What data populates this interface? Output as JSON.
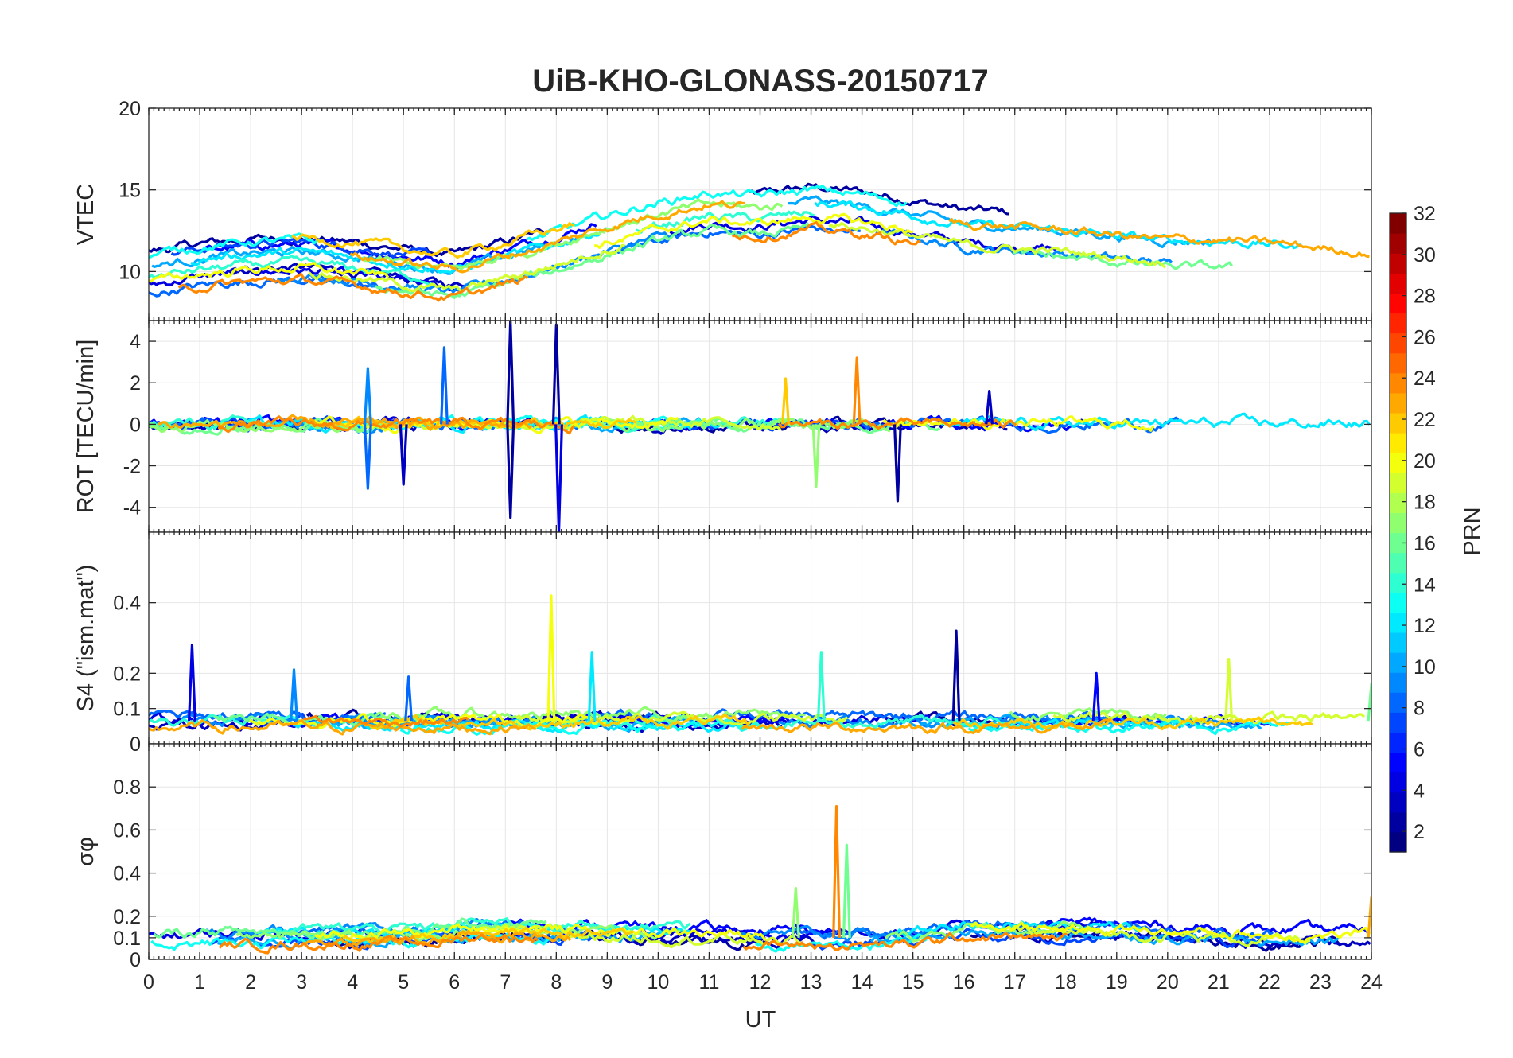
{
  "chart_data": {
    "type": "line",
    "title": "UiB-KHO-GLONASS-20150717",
    "xlabel": "UT",
    "xlim": [
      0,
      24
    ],
    "x_ticks": [
      "0",
      "1",
      "2",
      "3",
      "4",
      "5",
      "6",
      "7",
      "8",
      "9",
      "10",
      "11",
      "12",
      "13",
      "14",
      "15",
      "16",
      "17",
      "18",
      "19",
      "20",
      "21",
      "22",
      "23",
      "24"
    ],
    "grid": true,
    "series_note": "One line per GLONASS satellite, colored by PRN (jet colormap).",
    "panels": [
      {
        "ylabel": "VTEC",
        "ylim": [
          7,
          20
        ],
        "y_ticks": [
          {
            "v": 10,
            "label": "10"
          },
          {
            "v": 15,
            "label": "15"
          },
          {
            "v": 20,
            "label": "20"
          }
        ],
        "baseline": [
          [
            0,
            9.8
          ],
          [
            1,
            10.3
          ],
          [
            2,
            10.6
          ],
          [
            3,
            10.7
          ],
          [
            4,
            10.4
          ],
          [
            5,
            10.0
          ],
          [
            6,
            9.6
          ],
          [
            7,
            10.4
          ],
          [
            8,
            11.2
          ],
          [
            9,
            12.2
          ],
          [
            10,
            13.0
          ],
          [
            11,
            13.6
          ],
          [
            12,
            13.4
          ],
          [
            13,
            13.8
          ],
          [
            14,
            13.5
          ],
          [
            15,
            13.0
          ],
          [
            16,
            12.4
          ],
          [
            17,
            12.2
          ],
          [
            18,
            12.0
          ],
          [
            19,
            11.7
          ],
          [
            20,
            11.4
          ],
          [
            21,
            11.4
          ],
          [
            22,
            11.2
          ],
          [
            23,
            10.9
          ],
          [
            24,
            10.6
          ]
        ],
        "noise": 0.35,
        "spread": 1.4,
        "peaks": []
      },
      {
        "ylabel": "ROT [TECU/min]",
        "ylim": [
          -5.2,
          5
        ],
        "y_ticks": [
          {
            "v": -4,
            "label": "-4"
          },
          {
            "v": -2,
            "label": "-2"
          },
          {
            "v": 0,
            "label": "0"
          },
          {
            "v": 2,
            "label": "2"
          },
          {
            "v": 4,
            "label": "4"
          }
        ],
        "baseline": [
          [
            0,
            0.0
          ],
          [
            24,
            0.0
          ]
        ],
        "noise": 0.32,
        "spread": 0.05,
        "peaks": [
          {
            "t": 4.3,
            "v": 2.7,
            "prn": 9
          },
          {
            "t": 4.3,
            "v": -3.1,
            "prn": 8
          },
          {
            "t": 5.0,
            "v": -2.9,
            "prn": 3
          },
          {
            "t": 5.8,
            "v": 3.7,
            "prn": 8
          },
          {
            "t": 7.1,
            "v": 5.0,
            "prn": 2
          },
          {
            "t": 7.1,
            "v": -4.5,
            "prn": 2
          },
          {
            "t": 8.0,
            "v": 4.8,
            "prn": 2
          },
          {
            "t": 8.05,
            "v": -5.2,
            "prn": 4
          },
          {
            "t": 12.5,
            "v": 2.2,
            "prn": 22
          },
          {
            "t": 13.1,
            "v": -3.0,
            "prn": 17
          },
          {
            "t": 13.9,
            "v": 3.2,
            "prn": 24
          },
          {
            "t": 14.7,
            "v": -3.7,
            "prn": 2
          },
          {
            "t": 16.5,
            "v": 1.6,
            "prn": 3
          }
        ]
      },
      {
        "ylabel": "S4 (\"ism.mat\")",
        "ylim": [
          0,
          0.6
        ],
        "y_ticks": [
          {
            "v": 0,
            "label": "0"
          },
          {
            "v": 0.1,
            "label": "0.1"
          },
          {
            "v": 0.2,
            "label": "0.2"
          },
          {
            "v": 0.4,
            "label": "0.4"
          }
        ],
        "baseline": [
          [
            0,
            0.065
          ],
          [
            24,
            0.065
          ]
        ],
        "noise": 0.018,
        "spread": 0.02,
        "peaks": [
          {
            "t": 0.85,
            "v": 0.28,
            "prn": 4
          },
          {
            "t": 2.85,
            "v": 0.21,
            "prn": 9
          },
          {
            "t": 5.1,
            "v": 0.19,
            "prn": 8
          },
          {
            "t": 7.9,
            "v": 0.42,
            "prn": 20
          },
          {
            "t": 8.7,
            "v": 0.26,
            "prn": 12
          },
          {
            "t": 13.2,
            "v": 0.26,
            "prn": 14
          },
          {
            "t": 15.85,
            "v": 0.32,
            "prn": 2
          },
          {
            "t": 18.6,
            "v": 0.2,
            "prn": 5
          },
          {
            "t": 21.2,
            "v": 0.24,
            "prn": 19
          },
          {
            "t": 24.0,
            "v": 0.17,
            "prn": 16
          }
        ]
      },
      {
        "ylabel": "σφ",
        "ylim": [
          0,
          1
        ],
        "y_ticks": [
          {
            "v": 0,
            "label": "0"
          },
          {
            "v": 0.1,
            "label": "0.1"
          },
          {
            "v": 0.2,
            "label": "0.2"
          },
          {
            "v": 0.4,
            "label": "0.4"
          },
          {
            "v": 0.6,
            "label": "0.6"
          },
          {
            "v": 0.8,
            "label": "0.8"
          }
        ],
        "baseline": [
          [
            0,
            0.1
          ],
          [
            5.5,
            0.11
          ],
          [
            6.5,
            0.14
          ],
          [
            9,
            0.12
          ],
          [
            12,
            0.1
          ],
          [
            15,
            0.1
          ],
          [
            16,
            0.14
          ],
          [
            19,
            0.13
          ],
          [
            22,
            0.1
          ],
          [
            24,
            0.1
          ]
        ],
        "noise": 0.03,
        "spread": 0.035,
        "peaks": [
          {
            "t": 13.5,
            "v": 0.71,
            "prn": 24
          },
          {
            "t": 13.7,
            "v": 0.53,
            "prn": 16
          },
          {
            "t": 12.7,
            "v": 0.33,
            "prn": 17
          },
          {
            "t": 24.0,
            "v": 0.29,
            "prn": 23
          }
        ]
      }
    ],
    "colorbar": {
      "label": "PRN",
      "range": [
        1,
        32
      ],
      "ticks": [
        "2",
        "4",
        "6",
        "8",
        "10",
        "12",
        "14",
        "16",
        "18",
        "20",
        "22",
        "24",
        "26",
        "28",
        "30",
        "32"
      ]
    }
  }
}
